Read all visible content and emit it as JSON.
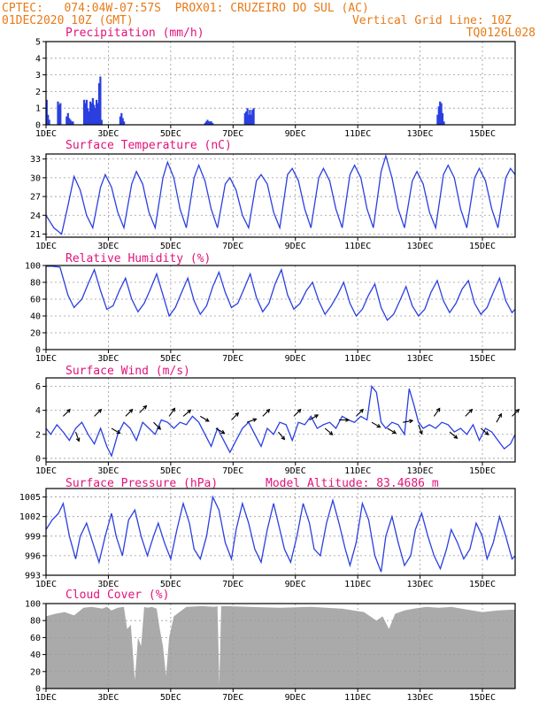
{
  "header": {
    "line1": "CPTEC:   074:04W-07:57S  PROX01: CRUZEIRO DO SUL (AC)",
    "line2": "01DEC2020 10Z (GMT)",
    "grid_note": "Vertical Grid Line: 10Z",
    "code": "TQ0126L028"
  },
  "colors": {
    "header": "#e87a17",
    "title": "#e3127a",
    "line": "#2b3fe0",
    "bar": "#2b3fe0",
    "cloud": "#aaaaaa",
    "arrow": "#000000"
  },
  "chart_data": [
    {
      "type": "bar",
      "id": "precip",
      "title": "Precipitation (mm/h)",
      "ylim": [
        0,
        5
      ],
      "yticks": [
        0,
        1,
        2,
        3,
        4,
        5
      ],
      "xlim_days": [
        1,
        16.05
      ],
      "xtick_days": [
        1,
        3,
        5,
        7,
        9,
        11,
        13,
        15
      ],
      "xtick_labels": [
        "1DEC",
        "3DEC",
        "5DEC",
        "7DEC",
        "9DEC",
        "11DEC",
        "13DEC",
        "15DEC"
      ],
      "x_days": [
        1.02,
        1.06,
        1.1,
        1.38,
        1.42,
        1.46,
        1.66,
        1.7,
        1.74,
        1.78,
        1.82,
        1.86,
        2.22,
        2.26,
        2.3,
        2.34,
        2.38,
        2.42,
        2.46,
        2.5,
        2.54,
        2.58,
        2.62,
        2.66,
        2.7,
        2.74,
        2.78,
        3.38,
        3.42,
        3.46,
        3.5,
        6.1,
        6.14,
        6.18,
        6.22,
        6.26,
        6.3,
        6.34,
        7.38,
        7.42,
        7.46,
        7.5,
        7.54,
        7.58,
        7.62,
        7.66,
        13.56,
        13.6,
        13.64,
        13.68,
        13.72,
        13.76
      ],
      "values": [
        1.5,
        0.6,
        0.3,
        1.4,
        1.2,
        1.3,
        0.5,
        0.7,
        0.4,
        0.3,
        0.2,
        0.2,
        1.5,
        1.3,
        1.5,
        1.0,
        0.8,
        1.4,
        1.3,
        1.6,
        1.2,
        1.0,
        1.5,
        1.3,
        2.5,
        2.9,
        0.3,
        0.5,
        0.7,
        0.4,
        0.2,
        0.1,
        0.2,
        0.3,
        0.2,
        0.2,
        0.2,
        0.1,
        0.7,
        0.8,
        1.0,
        0.6,
        0.9,
        0.6,
        0.9,
        1.0,
        0.6,
        1.1,
        1.4,
        1.3,
        0.7,
        0.2
      ]
    },
    {
      "type": "line",
      "id": "temp",
      "title": "Surface Temperature (nC)",
      "ylim": [
        20.5,
        33.8
      ],
      "yticks": [
        21,
        24,
        27,
        30,
        33
      ],
      "xlim_days": [
        1,
        16.05
      ],
      "xtick_days": [
        1,
        3,
        5,
        7,
        9,
        11,
        13,
        15
      ],
      "xtick_labels": [
        "1DEC",
        "3DEC",
        "5DEC",
        "7DEC",
        "9DEC",
        "11DEC",
        "13DEC",
        "15DEC"
      ],
      "x_days": [
        1.0,
        1.25,
        1.5,
        1.7,
        1.9,
        2.1,
        2.3,
        2.5,
        2.75,
        2.9,
        3.1,
        3.3,
        3.5,
        3.75,
        3.9,
        4.1,
        4.3,
        4.5,
        4.75,
        4.9,
        5.1,
        5.3,
        5.5,
        5.75,
        5.9,
        6.1,
        6.3,
        6.5,
        6.75,
        6.9,
        7.1,
        7.3,
        7.5,
        7.75,
        7.9,
        8.1,
        8.3,
        8.5,
        8.75,
        8.9,
        9.1,
        9.3,
        9.5,
        9.75,
        9.9,
        10.1,
        10.3,
        10.5,
        10.75,
        10.9,
        11.1,
        11.3,
        11.5,
        11.75,
        11.9,
        12.1,
        12.3,
        12.5,
        12.75,
        12.9,
        13.1,
        13.3,
        13.5,
        13.75,
        13.9,
        14.1,
        14.3,
        14.5,
        14.75,
        14.9,
        15.1,
        15.3,
        15.5,
        15.75,
        15.9,
        16.05
      ],
      "values": [
        24.0,
        22.0,
        21.0,
        25.5,
        30.2,
        28.0,
        24.0,
        22.0,
        28.5,
        30.5,
        28.5,
        24.5,
        22.0,
        29.0,
        31.0,
        29.0,
        24.5,
        22.0,
        30.0,
        32.5,
        30.0,
        25.0,
        22.0,
        30.0,
        32.0,
        29.5,
        25.0,
        22.0,
        29.0,
        30.0,
        28.0,
        24.0,
        22.0,
        29.5,
        30.5,
        29.0,
        24.5,
        22.0,
        30.5,
        31.5,
        29.5,
        25.0,
        22.0,
        30.0,
        31.5,
        29.5,
        25.0,
        22.0,
        30.5,
        32.0,
        30.0,
        25.0,
        22.0,
        31.0,
        33.5,
        30.0,
        25.0,
        22.0,
        29.5,
        31.0,
        29.0,
        24.5,
        22.0,
        30.5,
        32.0,
        30.0,
        25.0,
        22.0,
        30.0,
        31.5,
        29.5,
        25.0,
        22.0,
        30.0,
        31.5,
        30.5
      ]
    },
    {
      "type": "line",
      "id": "rh",
      "title": "Relative Humidity (%)",
      "ylim": [
        0,
        100
      ],
      "yticks": [
        0,
        20,
        40,
        60,
        80,
        100
      ],
      "xlim_days": [
        1,
        16.05
      ],
      "xtick_days": [
        1,
        3,
        5,
        7,
        9,
        11,
        13,
        15
      ],
      "xtick_labels": [
        "1DEC",
        "3DEC",
        "5DEC",
        "7DEC",
        "9DEC",
        "11DEC",
        "13DEC",
        "15DEC"
      ],
      "x_days": [
        1.0,
        1.2,
        1.45,
        1.7,
        1.9,
        2.15,
        2.35,
        2.55,
        2.75,
        2.95,
        3.15,
        3.35,
        3.55,
        3.75,
        3.95,
        4.15,
        4.35,
        4.55,
        4.75,
        4.95,
        5.15,
        5.35,
        5.55,
        5.75,
        5.95,
        6.15,
        6.35,
        6.55,
        6.75,
        6.95,
        7.15,
        7.35,
        7.55,
        7.75,
        7.95,
        8.15,
        8.35,
        8.55,
        8.75,
        8.95,
        9.15,
        9.35,
        9.55,
        9.75,
        9.95,
        10.15,
        10.35,
        10.55,
        10.75,
        10.95,
        11.15,
        11.35,
        11.55,
        11.75,
        11.95,
        12.15,
        12.35,
        12.55,
        12.75,
        12.95,
        13.15,
        13.35,
        13.55,
        13.75,
        13.95,
        14.15,
        14.35,
        14.55,
        14.75,
        14.95,
        15.15,
        15.35,
        15.55,
        15.75,
        15.95,
        16.05
      ],
      "values": [
        99,
        99,
        98,
        65,
        50,
        60,
        78,
        95,
        70,
        48,
        52,
        70,
        85,
        60,
        45,
        55,
        72,
        90,
        65,
        40,
        50,
        68,
        85,
        58,
        42,
        52,
        75,
        92,
        68,
        50,
        55,
        72,
        90,
        62,
        45,
        55,
        78,
        95,
        65,
        48,
        55,
        70,
        80,
        58,
        42,
        52,
        65,
        80,
        55,
        40,
        48,
        65,
        78,
        50,
        35,
        42,
        58,
        75,
        52,
        40,
        48,
        68,
        82,
        58,
        44,
        55,
        72,
        82,
        55,
        42,
        50,
        68,
        85,
        58,
        44,
        48
      ]
    },
    {
      "type": "line",
      "id": "wind",
      "title": "Surface Wind (m/s)",
      "ylim": [
        -0.3,
        6.7
      ],
      "yticks": [
        0,
        2,
        4,
        6
      ],
      "xlim_days": [
        1,
        16.05
      ],
      "xtick_days": [
        1,
        3,
        5,
        7,
        9,
        11,
        13,
        15
      ],
      "xtick_labels": [
        "1DEC",
        "3DEC",
        "5DEC",
        "7DEC",
        "9DEC",
        "11DEC",
        "13DEC",
        "15DEC"
      ],
      "x_days": [
        1.0,
        1.15,
        1.35,
        1.55,
        1.75,
        1.95,
        2.15,
        2.35,
        2.55,
        2.75,
        2.95,
        3.1,
        3.3,
        3.5,
        3.7,
        3.9,
        4.1,
        4.3,
        4.5,
        4.7,
        4.9,
        5.1,
        5.3,
        5.5,
        5.7,
        5.9,
        6.1,
        6.3,
        6.5,
        6.7,
        6.9,
        7.1,
        7.3,
        7.5,
        7.7,
        7.9,
        8.1,
        8.3,
        8.5,
        8.7,
        8.9,
        9.1,
        9.3,
        9.5,
        9.7,
        9.9,
        10.1,
        10.3,
        10.5,
        10.7,
        10.9,
        11.1,
        11.3,
        11.45,
        11.6,
        11.75,
        11.9,
        12.1,
        12.3,
        12.5,
        12.65,
        12.8,
        12.95,
        13.1,
        13.3,
        13.5,
        13.7,
        13.9,
        14.1,
        14.3,
        14.5,
        14.7,
        14.9,
        15.1,
        15.3,
        15.5,
        15.7,
        15.9,
        16.05
      ],
      "values": [
        2.5,
        2.0,
        2.8,
        2.2,
        1.5,
        2.5,
        3.0,
        2.0,
        1.2,
        2.5,
        1.0,
        0.2,
        2.0,
        3.0,
        2.5,
        1.5,
        3.0,
        2.5,
        2.0,
        3.2,
        3.0,
        2.5,
        3.0,
        2.8,
        3.5,
        3.0,
        2.0,
        1.0,
        2.5,
        1.5,
        0.5,
        1.5,
        2.5,
        3.0,
        2.0,
        1.0,
        2.5,
        2.0,
        3.0,
        2.8,
        1.5,
        3.0,
        2.8,
        3.5,
        2.5,
        2.8,
        3.0,
        2.5,
        3.5,
        3.2,
        3.0,
        3.5,
        3.2,
        6.0,
        5.5,
        3.0,
        2.5,
        3.0,
        2.8,
        2.0,
        5.8,
        4.5,
        3.0,
        2.5,
        2.8,
        2.5,
        3.0,
        2.8,
        2.2,
        2.5,
        2.0,
        2.8,
        1.5,
        2.5,
        2.2,
        1.5,
        0.8,
        1.2,
        2.0
      ],
      "arrows": {
        "x_days": [
          1.55,
          1.95,
          2.55,
          3.1,
          3.55,
          4.0,
          4.45,
          4.95,
          5.4,
          5.95,
          6.45,
          6.95,
          7.45,
          7.95,
          8.45,
          8.95,
          9.45,
          9.95,
          10.4,
          10.95,
          11.45,
          11.95,
          12.45,
          12.95,
          13.45,
          13.95,
          14.45,
          14.95,
          15.45,
          15.95
        ],
        "speed": [
          3.5,
          2.2,
          3.5,
          2.5,
          3.5,
          3.8,
          3.0,
          3.5,
          3.5,
          3.5,
          2.5,
          3.2,
          3.0,
          3.5,
          2.2,
          3.5,
          3.2,
          2.5,
          3.2,
          3.5,
          3.0,
          2.5,
          3.0,
          2.8,
          3.5,
          2.2,
          3.5,
          2.5,
          3.0,
          3.5
        ],
        "dir_deg": [
          225,
          340,
          225,
          300,
          225,
          225,
          315,
          215,
          230,
          300,
          300,
          225,
          250,
          225,
          320,
          225,
          240,
          310,
          270,
          225,
          300,
          300,
          260,
          340,
          215,
          310,
          225,
          310,
          210,
          225
        ]
      }
    },
    {
      "type": "line",
      "id": "pres",
      "title": "Surface Pressure (hPa)",
      "annotation": "Model Altitude: 83.4686 m",
      "ylim": [
        993,
        1006.3
      ],
      "yticks": [
        993,
        996,
        999,
        1002,
        1005
      ],
      "xlim_days": [
        1,
        16.05
      ],
      "xtick_days": [
        1,
        3,
        5,
        7,
        9,
        11,
        13,
        15
      ],
      "xtick_labels": [
        "1DEC",
        "3DEC",
        "5DEC",
        "7DEC",
        "9DEC",
        "11DEC",
        "13DEC",
        "15DEC"
      ],
      "x_days": [
        1.0,
        1.2,
        1.4,
        1.55,
        1.75,
        1.95,
        2.1,
        2.3,
        2.5,
        2.7,
        2.9,
        3.1,
        3.25,
        3.45,
        3.65,
        3.85,
        4.05,
        4.25,
        4.45,
        4.6,
        4.8,
        5.0,
        5.2,
        5.4,
        5.6,
        5.75,
        5.95,
        6.15,
        6.35,
        6.55,
        6.75,
        6.95,
        7.1,
        7.3,
        7.5,
        7.7,
        7.9,
        8.1,
        8.3,
        8.45,
        8.65,
        8.85,
        9.05,
        9.25,
        9.45,
        9.6,
        9.8,
        10.0,
        10.2,
        10.4,
        10.6,
        10.75,
        10.95,
        11.15,
        11.35,
        11.55,
        11.75,
        11.9,
        12.1,
        12.3,
        12.5,
        12.7,
        12.85,
        13.05,
        13.25,
        13.45,
        13.65,
        13.85,
        14.0,
        14.2,
        14.4,
        14.6,
        14.8,
        15.0,
        15.15,
        15.35,
        15.55,
        15.75,
        15.95,
        16.05
      ],
      "values": [
        1000,
        1001.5,
        1002.5,
        1004,
        999,
        995.5,
        999,
        1001,
        998,
        995,
        999,
        1002.5,
        999,
        996,
        1001.5,
        1003,
        999,
        996,
        999,
        1001,
        998,
        995.5,
        1000,
        1004,
        1001,
        997,
        995.5,
        999,
        1005,
        1003,
        998,
        995.5,
        1000,
        1004,
        1001,
        997,
        995,
        1000,
        1004,
        1001,
        997,
        995,
        999,
        1004,
        1001,
        997,
        996,
        1001,
        1004.5,
        1001,
        997,
        994.5,
        998,
        1004,
        1001.5,
        996,
        993.5,
        999,
        1002,
        998,
        994.5,
        996,
        1000,
        1002.5,
        999,
        996,
        994,
        997,
        1000,
        998,
        995.5,
        997,
        1001,
        999,
        995.5,
        998,
        1002,
        999,
        995.5,
        996
      ]
    },
    {
      "type": "area",
      "id": "cloud",
      "title": "Cloud Cover (%)",
      "ylim": [
        0,
        100
      ],
      "yticks": [
        0,
        20,
        40,
        60,
        80,
        100
      ],
      "xlim_days": [
        1,
        16.05
      ],
      "xtick_days": [
        1,
        3,
        5,
        7,
        9,
        11,
        13,
        15
      ],
      "xtick_labels": [
        "1DEC",
        "3DEC",
        "5DEC",
        "7DEC",
        "9DEC",
        "11DEC",
        "13DEC",
        "15DEC"
      ],
      "x_days": [
        1.0,
        1.3,
        1.6,
        1.9,
        2.2,
        2.45,
        2.65,
        2.8,
        2.95,
        3.1,
        3.3,
        3.5,
        3.6,
        3.72,
        3.85,
        3.95,
        4.05,
        4.15,
        4.25,
        4.4,
        4.55,
        4.65,
        4.75,
        4.85,
        4.95,
        5.1,
        5.5,
        6.0,
        6.4,
        6.5,
        6.56,
        6.62,
        6.8,
        7.5,
        8.5,
        9.5,
        10.5,
        11.2,
        11.6,
        11.8,
        12.0,
        12.2,
        12.5,
        12.8,
        13.2,
        13.6,
        14.0,
        14.5,
        15.0,
        15.5,
        16.05
      ],
      "values": [
        85,
        88,
        90,
        86,
        95,
        96,
        95,
        94,
        96,
        92,
        95,
        96,
        70,
        75,
        10,
        60,
        50,
        96,
        95,
        96,
        94,
        70,
        50,
        15,
        60,
        85,
        96,
        97,
        96,
        97,
        5,
        97,
        97,
        96,
        95,
        96,
        94,
        90,
        80,
        85,
        70,
        88,
        92,
        94,
        96,
        95,
        96,
        93,
        90,
        92,
        93
      ]
    }
  ]
}
